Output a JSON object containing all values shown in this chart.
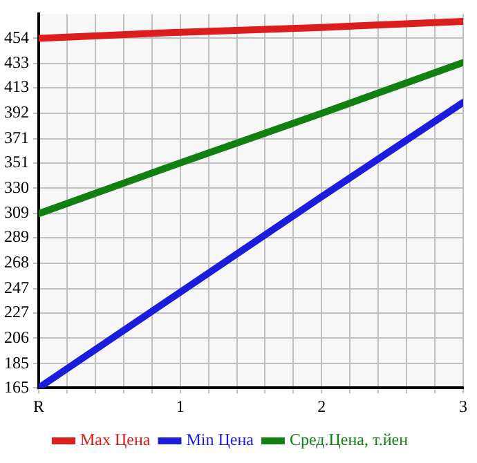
{
  "chart_data": {
    "type": "line",
    "x": [
      0,
      1,
      2,
      3
    ],
    "xlim": [
      0,
      3
    ],
    "xticks": [
      {
        "value": 0,
        "label": "R"
      },
      {
        "value": 0.2,
        "label": null
      },
      {
        "value": 0.4,
        "label": null
      },
      {
        "value": 0.6,
        "label": null
      },
      {
        "value": 0.8,
        "label": null
      },
      1,
      {
        "value": 1.2,
        "label": null
      },
      {
        "value": 1.4,
        "label": null
      },
      {
        "value": 1.6,
        "label": null
      },
      {
        "value": 1.8,
        "label": null
      },
      2,
      {
        "value": 2.2,
        "label": null
      },
      {
        "value": 2.4,
        "label": null
      },
      {
        "value": 2.6,
        "label": null
      },
      {
        "value": 2.8,
        "label": null
      },
      3
    ],
    "ylim": [
      165,
      474
    ],
    "yticks": [
      165,
      185,
      206,
      227,
      247,
      268,
      289,
      309,
      330,
      351,
      371,
      392,
      413,
      433,
      454
    ],
    "grid": true,
    "legend": "bottom",
    "marker": "none",
    "line_style": "solid",
    "series": [
      {
        "name": "Max Цена",
        "color": "#dd1c1c",
        "values": [
          454,
          459,
          463,
          468
        ]
      },
      {
        "name": "Min Цена",
        "color": "#1c1cdd",
        "values": [
          165,
          244,
          323,
          401
        ]
      },
      {
        "name": "Сред.Цена, т.йен",
        "color": "#118011",
        "values": [
          309,
          351,
          392,
          434
        ]
      }
    ]
  }
}
